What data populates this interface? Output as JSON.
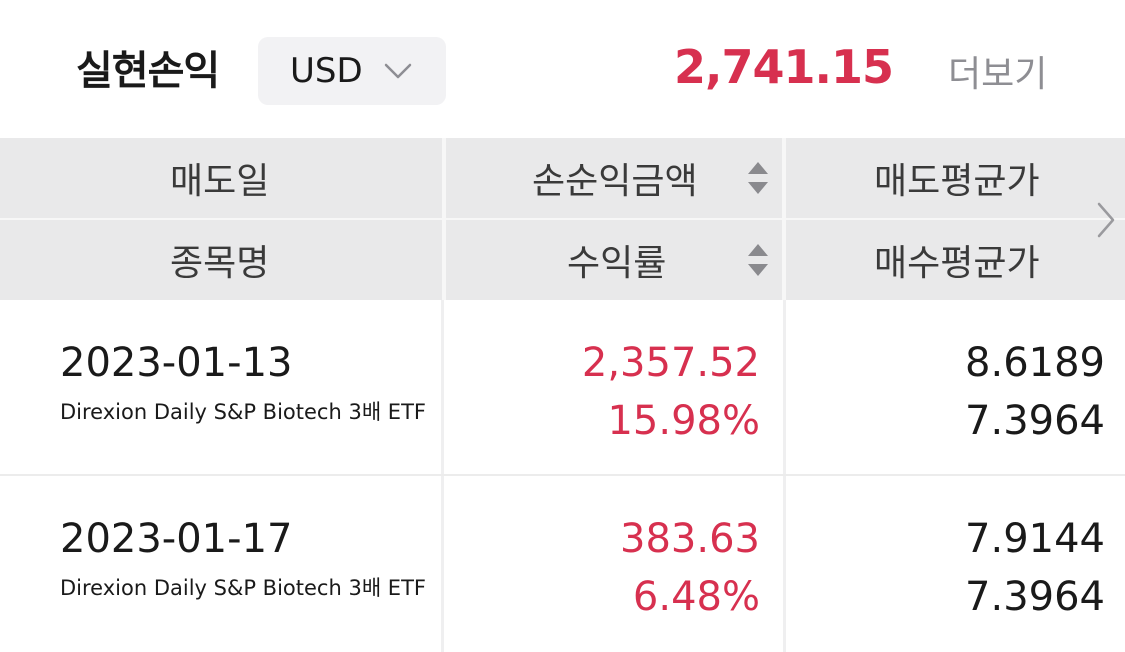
{
  "header": {
    "title": "실현손익",
    "currency": "USD",
    "total": "2,741.15",
    "more_label": "더보기"
  },
  "columns": {
    "sell_date": "매도일",
    "pl_amount": "손순익금액",
    "sell_avg_price": "매도평균가",
    "stock_name": "종목명",
    "return_rate": "수익률",
    "buy_avg_price": "매수평균가"
  },
  "rows": [
    {
      "sell_date": "2023-01-13",
      "stock_name": "Direxion Daily S&P Biotech 3배 ETF",
      "pl_amount": "2,357.52",
      "return_rate": "15.98%",
      "sell_avg_price": "8.6189",
      "buy_avg_price": "7.3964"
    },
    {
      "sell_date": "2023-01-17",
      "stock_name": "Direxion Daily S&P Biotech 3배 ETF",
      "pl_amount": "383.63",
      "return_rate": "6.48%",
      "sell_avg_price": "7.9144",
      "buy_avg_price": "7.3964"
    }
  ],
  "colors": {
    "positive": "#d7304f",
    "header_bg": "#e9e9ea",
    "muted_text": "#8e8e93"
  },
  "icons": {
    "currency_dropdown": "chevron-down-icon",
    "sort": "sort-updown-icon",
    "next_columns": "chevron-right-icon"
  }
}
